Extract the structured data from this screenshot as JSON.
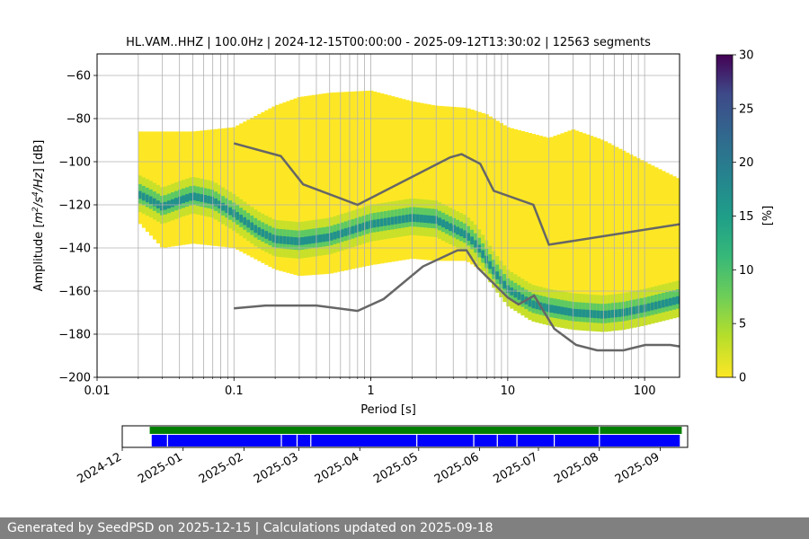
{
  "chart_data": [
    {
      "type": "heatmap",
      "title": "HL.VAM..HHZ | 100.0Hz | 2024-12-15T00:00:00 - 2025-09-12T13:30:02 | 12563 segments",
      "xlabel": "Period [s]",
      "ylabel": "Amplitude [$m^2/s^4/Hz$] [dB]",
      "ylabel_parts": {
        "pre": "Amplitude [",
        "m": "m",
        "two": "2",
        "mid": "/s",
        "four": "4",
        "post": "/Hz",
        "tail": "] [dB]"
      },
      "xscale": "log",
      "xlim": [
        0.01,
        180
      ],
      "ylim": [
        -200,
        -50
      ],
      "xtick_labels": [
        "0.01",
        "0.1",
        "1",
        "10",
        "100"
      ],
      "ytick_labels": [
        "−60",
        "−80",
        "−100",
        "−120",
        "−140",
        "−160",
        "−180",
        "−200"
      ],
      "yticks": [
        -60,
        -80,
        -100,
        -120,
        -140,
        -160,
        -180,
        -200
      ],
      "grid_periods": [
        0.02,
        0.03,
        0.04,
        0.05,
        0.06,
        0.07,
        0.08,
        0.09,
        0.1,
        0.2,
        0.3,
        0.4,
        0.5,
        0.6,
        0.7,
        0.8,
        0.9,
        1,
        2,
        3,
        4,
        5,
        6,
        7,
        8,
        9,
        10,
        20,
        30,
        40,
        50,
        60,
        70,
        80,
        90,
        100
      ],
      "grid": true,
      "colorbar": {
        "label": "[%]",
        "range": [
          0,
          30
        ],
        "tick_labels": [
          "0",
          "5",
          "10",
          "15",
          "20",
          "25",
          "30"
        ],
        "colormap": "viridis"
      },
      "mode_curve": {
        "period": [
          0.02,
          0.025,
          0.03,
          0.04,
          0.05,
          0.07,
          0.1,
          0.15,
          0.2,
          0.3,
          0.5,
          0.8,
          1,
          2,
          3,
          4,
          5,
          6,
          8,
          10,
          15,
          20,
          30,
          50,
          70,
          100,
          180
        ],
        "db": [
          -115,
          -118,
          -121,
          -118,
          -116,
          -118,
          -124,
          -132,
          -136,
          -137,
          -135,
          -131,
          -129,
          -126,
          -127,
          -131,
          -134,
          -139,
          -151,
          -159,
          -166,
          -168,
          -170,
          -171,
          -170,
          -168,
          -164
        ]
      },
      "envelope_upper": {
        "period": [
          0.02,
          0.03,
          0.05,
          0.1,
          0.2,
          0.3,
          0.5,
          1,
          2,
          3,
          5,
          7,
          10,
          20,
          30,
          50,
          100,
          180
        ],
        "db": [
          -86,
          -86,
          -86,
          -84,
          -74,
          -70,
          -68,
          -67,
          -72,
          -74,
          -75,
          -78,
          -84,
          -89,
          -85,
          -90,
          -100,
          -108
        ]
      },
      "envelope_lower": {
        "period": [
          0.02,
          0.03,
          0.05,
          0.1,
          0.2,
          0.3,
          0.5,
          1,
          2,
          3,
          5,
          7,
          10,
          15,
          20,
          30,
          50,
          100,
          180
        ],
        "db": [
          -128,
          -140,
          -138,
          -140,
          -150,
          -153,
          -152,
          -148,
          -145,
          -146,
          -146,
          -152,
          -160,
          -168,
          -174,
          -175,
          -176,
          -174,
          -172
        ]
      },
      "nhnm": {
        "period": [
          0.1,
          0.22,
          0.32,
          0.8,
          3.8,
          4.6,
          6.3,
          7.9,
          15.4,
          20,
          180
        ],
        "db": [
          -91.5,
          -97.4,
          -110.5,
          -120,
          -98,
          -96.5,
          -101,
          -113.5,
          -120,
          -138.5,
          -129
        ]
      },
      "nlnm": {
        "period": [
          0.1,
          0.17,
          0.4,
          0.8,
          1.24,
          2.4,
          4.3,
          5,
          6,
          10,
          12,
          15.6,
          21.9,
          31.6,
          45,
          70,
          101,
          154,
          180
        ],
        "db": [
          -168,
          -166.7,
          -166.7,
          -169.2,
          -163.7,
          -148.6,
          -141.1,
          -141.1,
          -149,
          -163,
          -166.2,
          -162.1,
          -177.5,
          -185,
          -187.5,
          -187.5,
          -185,
          -185,
          -185.7
        ]
      }
    },
    {
      "type": "timeline",
      "start": "2024-12-01",
      "end": "2025-09-15",
      "tick_labels": [
        "2024-12",
        "2025-01",
        "2025-02",
        "2025-03",
        "2025-04",
        "2025-05",
        "2025-06",
        "2025-07",
        "2025-08",
        "2025-09"
      ],
      "tick_dates": [
        "2024-12-01",
        "2025-01-01",
        "2025-02-01",
        "2025-03-01",
        "2025-04-01",
        "2025-05-01",
        "2025-06-01",
        "2025-07-01",
        "2025-08-01",
        "2025-09-01"
      ],
      "bars": [
        {
          "name": "green",
          "color": "#008000",
          "start": "2024-12-15",
          "end": "2025-09-12",
          "gaps": [
            "2025-08-01"
          ]
        },
        {
          "name": "blue",
          "color": "#0000ff",
          "start": "2024-12-16",
          "end": "2025-09-11",
          "gaps": [
            "2024-12-24",
            "2025-02-20",
            "2025-02-28",
            "2025-03-07",
            "2025-04-30",
            "2025-05-29",
            "2025-06-10",
            "2025-06-20",
            "2025-07-09",
            "2025-08-01",
            "2025-09-12"
          ]
        }
      ]
    }
  ],
  "footer": {
    "text": "Generated by SeedPSD on 2025-12-15 | Calculations updated on 2025-09-18"
  },
  "colors": {
    "nm_line": "#666666",
    "grid": "#b0b0b0",
    "footer_bg": "#808080"
  }
}
